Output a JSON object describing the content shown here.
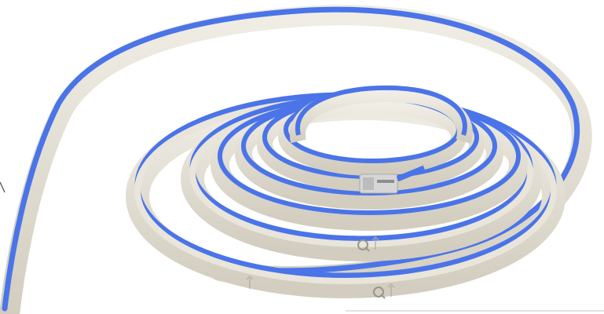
{
  "image": {
    "subject": "coiled-neon-led-strip",
    "colors": {
      "background": "#ffffff",
      "glow": "#4a74e8",
      "glow_light": "#7d9cf2",
      "silicone": "#e7e3d8",
      "silicone_shadow": "#c9c4b6",
      "connector": "#d8d8d8",
      "marking": "#9a968c"
    }
  }
}
